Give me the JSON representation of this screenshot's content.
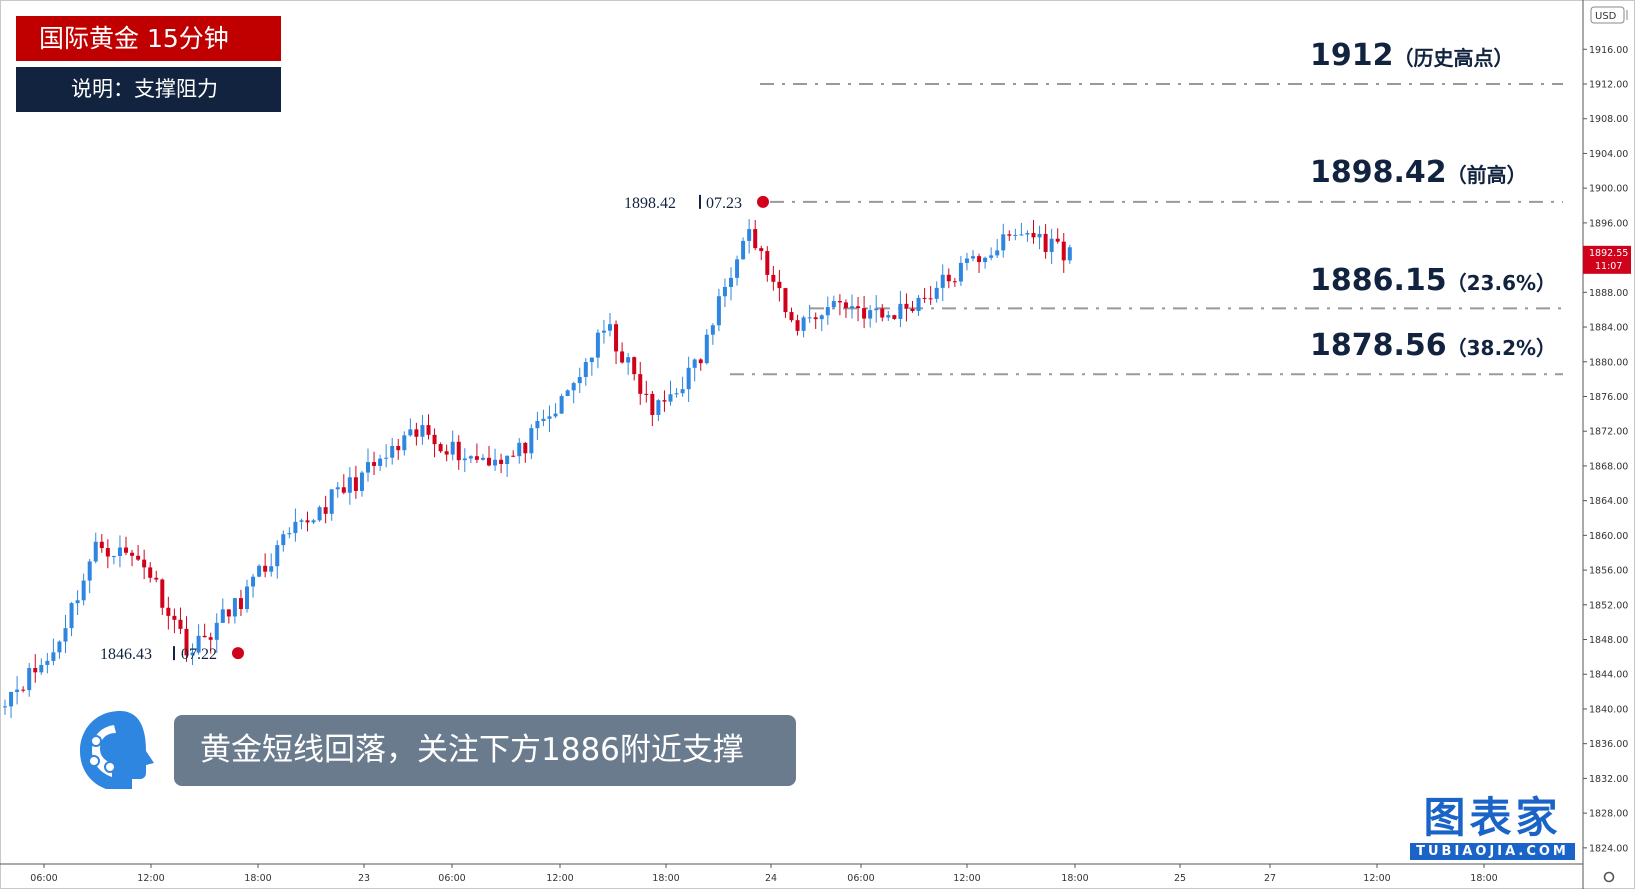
{
  "header": {
    "title": "国际黄金  15分钟",
    "subtitle": "说明：支撑阻力"
  },
  "levels": [
    {
      "value": "1912",
      "note": "（历史高点）"
    },
    {
      "value": "1898.42",
      "note": "（前高）"
    },
    {
      "value": "1886.15",
      "note": "（23.6%）"
    },
    {
      "value": "1878.56",
      "note": "（38.2%）"
    }
  ],
  "markers": {
    "high": {
      "price": "1898.42",
      "time": "07.23"
    },
    "low": {
      "price": "1846.43",
      "time": "07.22"
    }
  },
  "note": "黄金短线回落，关注下方1886附近支撑",
  "brand": {
    "main": "图表家",
    "sub": "TUBIAOJIA.COM"
  },
  "axis": {
    "currency": "USD",
    "last_price": "1892.55",
    "countdown": "11:07",
    "y_ticks": [
      "1916.00",
      "1912.00",
      "1908.00",
      "1904.00",
      "1900.00",
      "1896.00",
      "1892.00",
      "1888.00",
      "1884.00",
      "1880.00",
      "1876.00",
      "1872.00",
      "1868.00",
      "1864.00",
      "1860.00",
      "1856.00",
      "1852.00",
      "1848.00",
      "1844.00",
      "1840.00",
      "1836.00",
      "1832.00",
      "1828.00",
      "1824.00"
    ],
    "x_ticks": [
      "06:00",
      "12:00",
      "18:00",
      "23",
      "06:00",
      "12:00",
      "18:00",
      "24",
      "06:00",
      "12:00",
      "18:00",
      "25",
      "27",
      "12:00",
      "18:00"
    ]
  },
  "colors": {
    "up": "#2f86e0",
    "down": "#d0021b",
    "title_bg": "#c00000",
    "subtitle_bg": "#122340",
    "level_text": "#122340",
    "note_bg": "#6b7b8e",
    "brand": "#1a64c8"
  },
  "chart_data": {
    "type": "line",
    "title": "国际黄金  15分钟",
    "x": [
      "22 06:00",
      "22 09:00",
      "22 12:00",
      "22 15:00",
      "22 17:00",
      "22 18:00",
      "22 21:00",
      "23 00:00",
      "23 03:00",
      "23 06:00",
      "23 09:00",
      "23 12:00",
      "23 15:00",
      "23 18:00",
      "23 21:00",
      "23 23:00",
      "24 00:00",
      "24 03:00",
      "24 06:00",
      "24 09:00",
      "24 12:00",
      "24 15:00",
      "24 17:00",
      "24 18:00"
    ],
    "series": [
      {
        "values": [
          1841.5,
          1846,
          1859,
          1857,
          1846.5,
          1852,
          1859,
          1864,
          1868,
          1872,
          1869,
          1869,
          1875,
          1884,
          1874,
          1880,
          1896,
          1884,
          1887,
          1885,
          1888,
          1892,
          1895,
          1892.5
        ]
      }
    ],
    "levels": [
      1912,
      1898.42,
      1886.15,
      1878.56
    ],
    "ylim": [
      1823,
      1919
    ],
    "grid": false
  }
}
